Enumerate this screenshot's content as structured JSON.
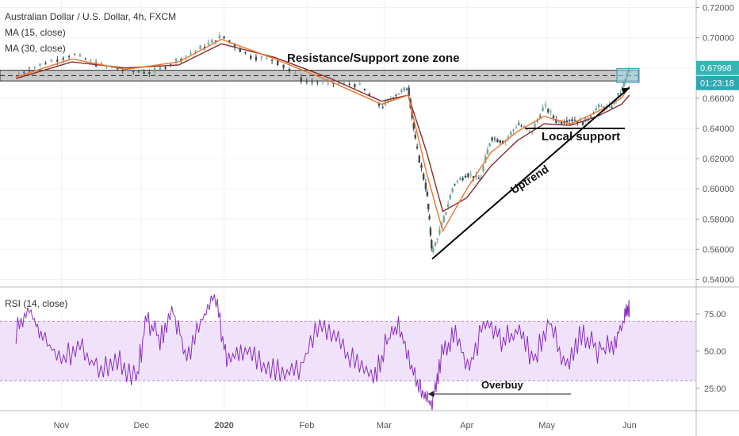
{
  "colors": {
    "ma15": "#e8742a",
    "ma30": "#8a2a2a",
    "candle_up": "#6fa8a0",
    "candle_down": "#3c4b52",
    "rsi_line": "#8a2fbf",
    "rsi_band": "#f1e2fb",
    "zone_fill": "#9a9a9a",
    "price_badge": "#35b6b4",
    "timer_badge": "#2da8b0",
    "trend": "#000000"
  },
  "chart_data": [
    {
      "type": "line",
      "title": "Australian Dollar / U.S. Dollar, 4h, FXCM",
      "legend": [
        "MA (15, close)",
        "MA (30, close)"
      ],
      "ylim": [
        0.535,
        0.725
      ],
      "y_ticks": [
        "0.72000",
        "0.70000",
        "0.68000",
        "0.66000",
        "0.64000",
        "0.62000",
        "0.60000",
        "0.58000",
        "0.56000",
        "0.54000"
      ],
      "x_ticks": [
        "Nov",
        "Dec",
        "2020",
        "Feb",
        "Mar",
        "Apr",
        "May",
        "Jun"
      ],
      "series": [
        {
          "name": "AUD/USD",
          "x": [
            "2019-10-15",
            "2019-10-25",
            "2019-11-05",
            "2019-11-15",
            "2019-11-25",
            "2019-12-05",
            "2019-12-15",
            "2019-12-24",
            "2019-12-31",
            "2020-01-10",
            "2020-01-20",
            "2020-01-31",
            "2020-02-10",
            "2020-02-20",
            "2020-02-29",
            "2020-03-05",
            "2020-03-10",
            "2020-03-13",
            "2020-03-17",
            "2020-03-19",
            "2020-03-23",
            "2020-03-27",
            "2020-04-01",
            "2020-04-06",
            "2020-04-10",
            "2020-04-15",
            "2020-04-20",
            "2020-04-25",
            "2020-04-30",
            "2020-05-05",
            "2020-05-10",
            "2020-05-15",
            "2020-05-20",
            "2020-05-25",
            "2020-05-29",
            "2020-06-01"
          ],
          "values": [
            0.676,
            0.683,
            0.689,
            0.682,
            0.678,
            0.677,
            0.686,
            0.694,
            0.701,
            0.688,
            0.685,
            0.671,
            0.67,
            0.669,
            0.654,
            0.662,
            0.667,
            0.628,
            0.598,
            0.558,
            0.578,
            0.603,
            0.61,
            0.606,
            0.634,
            0.631,
            0.643,
            0.637,
            0.655,
            0.644,
            0.646,
            0.644,
            0.654,
            0.654,
            0.665,
            0.68
          ]
        },
        {
          "name": "MA (15, close)",
          "x": [
            "2019-10-15",
            "2019-11-05",
            "2019-11-25",
            "2019-12-15",
            "2019-12-31",
            "2020-01-20",
            "2020-02-10",
            "2020-02-29",
            "2020-03-10",
            "2020-03-17",
            "2020-03-23",
            "2020-04-01",
            "2020-04-10",
            "2020-04-20",
            "2020-04-30",
            "2020-05-10",
            "2020-05-20",
            "2020-05-29",
            "2020-06-01"
          ],
          "values": [
            0.674,
            0.686,
            0.679,
            0.684,
            0.699,
            0.686,
            0.671,
            0.656,
            0.662,
            0.61,
            0.572,
            0.6,
            0.624,
            0.638,
            0.648,
            0.643,
            0.651,
            0.66,
            0.668
          ]
        },
        {
          "name": "MA (30, close)",
          "x": [
            "2019-10-15",
            "2019-11-05",
            "2019-11-25",
            "2019-12-15",
            "2019-12-31",
            "2020-01-20",
            "2020-02-10",
            "2020-02-29",
            "2020-03-10",
            "2020-03-17",
            "2020-03-23",
            "2020-04-01",
            "2020-04-10",
            "2020-04-20",
            "2020-04-30",
            "2020-05-10",
            "2020-05-20",
            "2020-05-29",
            "2020-06-01"
          ],
          "values": [
            0.673,
            0.684,
            0.68,
            0.682,
            0.696,
            0.687,
            0.673,
            0.658,
            0.662,
            0.624,
            0.585,
            0.594,
            0.615,
            0.632,
            0.643,
            0.642,
            0.648,
            0.656,
            0.662
          ]
        }
      ],
      "current_price": "0.67998",
      "timer": "01:23:18",
      "annotations": [
        {
          "text": "Resistance/Support zone zone",
          "y_range": [
            0.6714,
            0.6785
          ]
        },
        {
          "text": "Local support",
          "y": 0.64
        },
        {
          "text": "Uptrend",
          "from": [
            "2020-03-19",
            0.5535
          ],
          "to": [
            "2020-06-01",
            0.667
          ]
        }
      ]
    },
    {
      "type": "line",
      "title": "RSI (14, close)",
      "ylim": [
        10,
        92
      ],
      "y_ticks": [
        "75.00",
        "50.00",
        "25.00"
      ],
      "band": [
        30,
        70
      ],
      "series": [
        {
          "name": "RSI (14, close)",
          "x": [
            "2019-10-15",
            "2019-10-20",
            "2019-10-25",
            "2019-11-01",
            "2019-11-08",
            "2019-11-15",
            "2019-11-22",
            "2019-11-29",
            "2019-12-03",
            "2019-12-08",
            "2019-12-13",
            "2019-12-18",
            "2019-12-24",
            "2019-12-29",
            "2020-01-02",
            "2020-01-08",
            "2020-01-15",
            "2020-01-22",
            "2020-01-29",
            "2020-02-05",
            "2020-02-12",
            "2020-02-19",
            "2020-02-26",
            "2020-03-02",
            "2020-03-07",
            "2020-03-12",
            "2020-03-16",
            "2020-03-19",
            "2020-03-22",
            "2020-03-27",
            "2020-04-02",
            "2020-04-08",
            "2020-04-14",
            "2020-04-20",
            "2020-04-26",
            "2020-05-02",
            "2020-05-08",
            "2020-05-14",
            "2020-05-20",
            "2020-05-26",
            "2020-05-30",
            "2020-06-01"
          ],
          "values": [
            62,
            78,
            58,
            46,
            52,
            38,
            44,
            30,
            72,
            58,
            76,
            46,
            72,
            88,
            40,
            52,
            42,
            38,
            36,
            66,
            58,
            42,
            32,
            56,
            66,
            34,
            20,
            14,
            44,
            62,
            40,
            70,
            58,
            64,
            44,
            70,
            40,
            62,
            50,
            56,
            72,
            76
          ]
        }
      ],
      "annotations": [
        {
          "text": "Overbuy"
        }
      ]
    }
  ]
}
